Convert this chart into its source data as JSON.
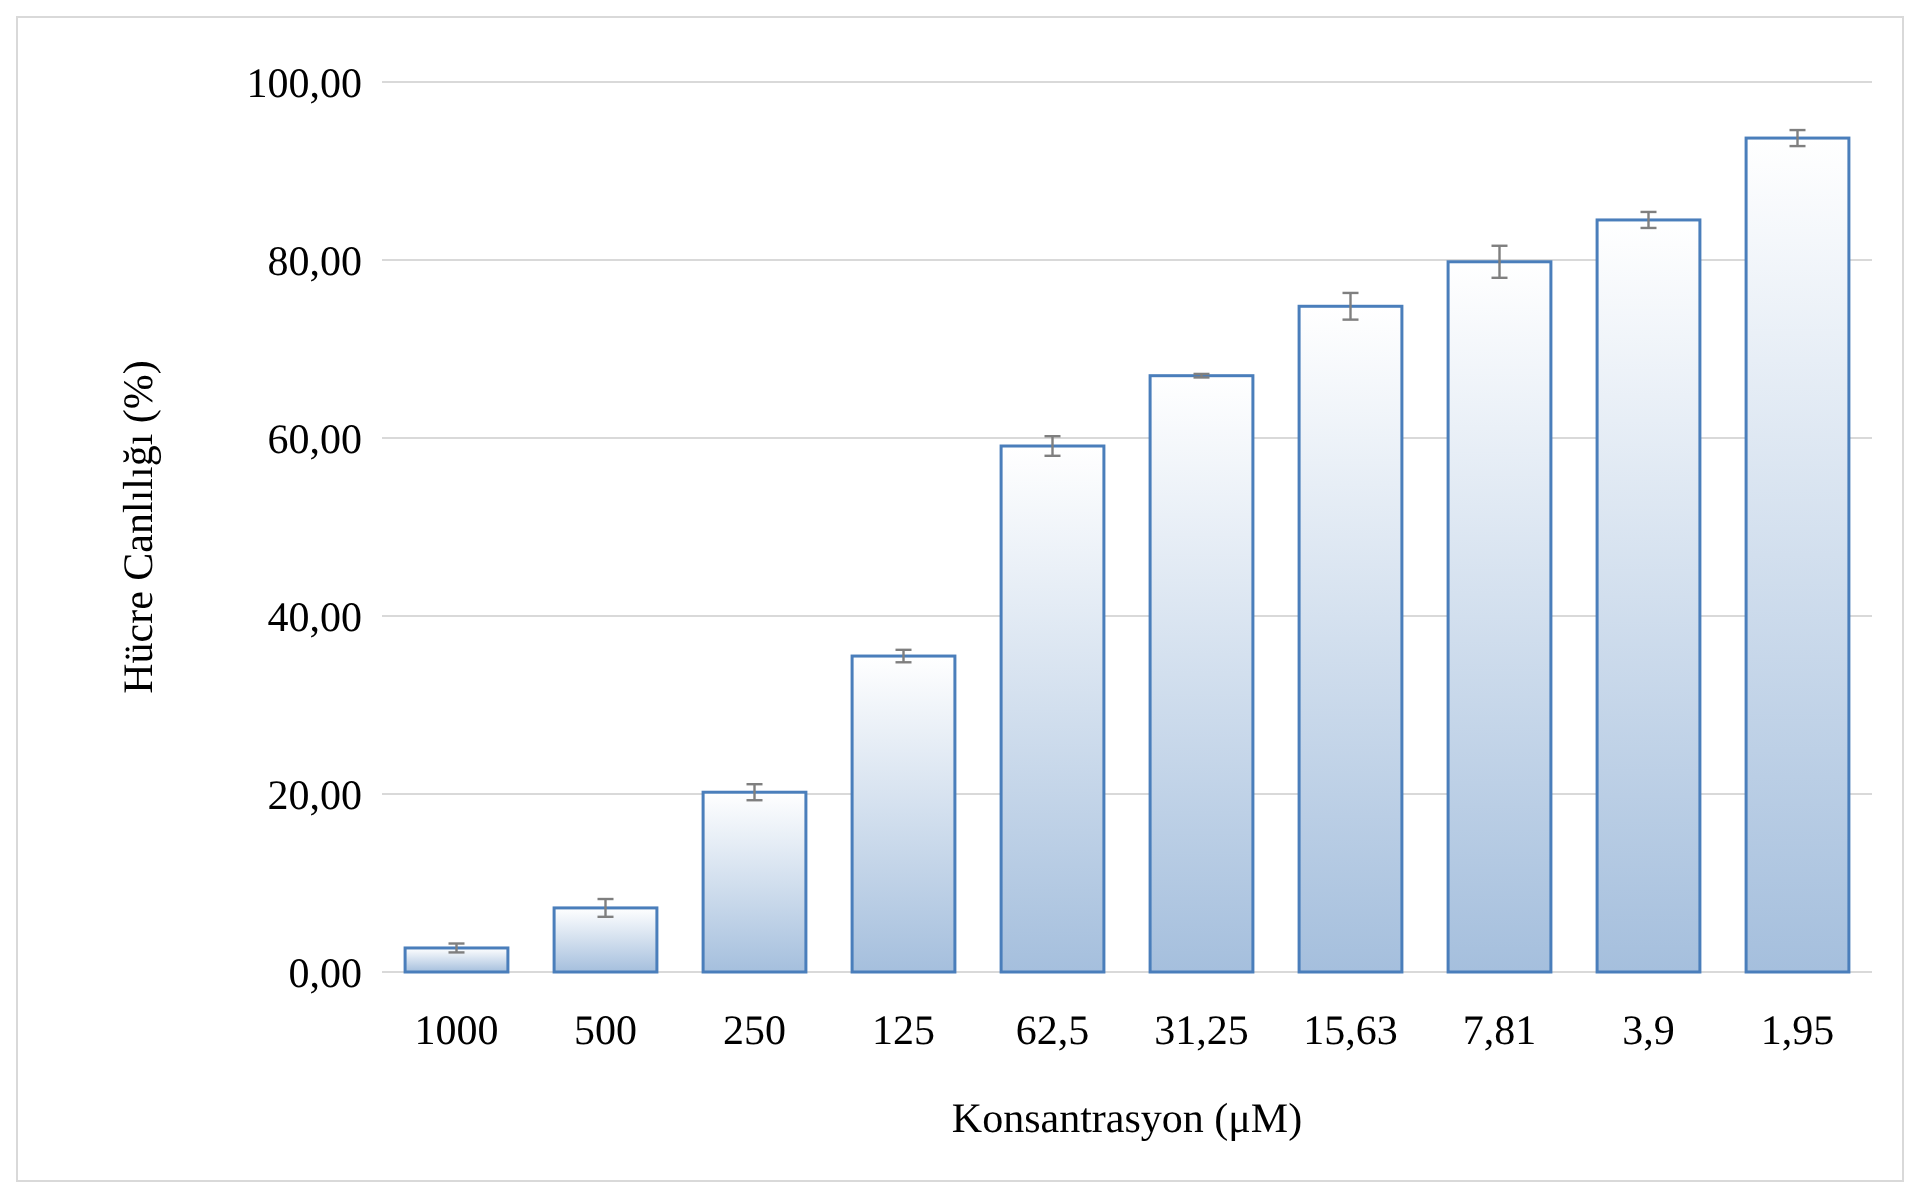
{
  "chart_data": {
    "type": "bar",
    "xlabel": "Konsantrasyon (μM)",
    "ylabel": "Hücre Canlılığı (%)",
    "categories": [
      "1000",
      "500",
      "250",
      "125",
      "62,5",
      "31,25",
      "15,63",
      "7,81",
      "3,9",
      "1,95"
    ],
    "values": [
      2.7,
      7.2,
      20.2,
      35.5,
      59.1,
      67.0,
      74.8,
      79.8,
      84.5,
      93.7
    ],
    "errors": [
      0.5,
      1.0,
      0.9,
      0.7,
      1.1,
      0.2,
      1.5,
      1.8,
      0.9,
      0.9
    ],
    "color": "#4a7ebb",
    "ylim": [
      0,
      100
    ],
    "yticks": [
      {
        "value": 0,
        "label": "0,00"
      },
      {
        "value": 20,
        "label": "20,00"
      },
      {
        "value": 40,
        "label": "40,00"
      },
      {
        "value": 60,
        "label": "60,00"
      },
      {
        "value": 80,
        "label": "80,00"
      },
      {
        "value": 100,
        "label": "100,00"
      }
    ],
    "grid": "y"
  }
}
